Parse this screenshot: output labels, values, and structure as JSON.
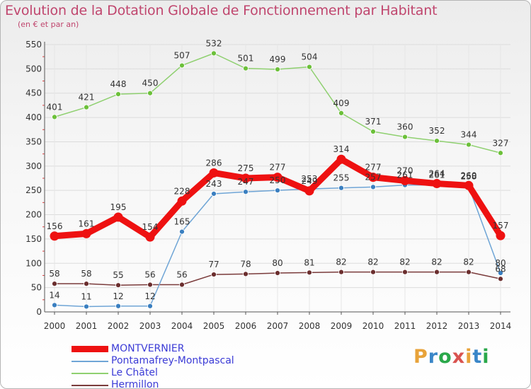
{
  "header": {
    "title": "Evolution de la Dotation Globale de Fonctionnement par Habitant",
    "subtitle": "(en € et par an)"
  },
  "logo": {
    "text": "Proxiti",
    "colors": [
      "#e8a33a",
      "#3a86c8",
      "#2aa84a",
      "#d9534f",
      "#e8a33a",
      "#3a86c8",
      "#2aa84a"
    ]
  },
  "colors": {
    "text": "#c0466e",
    "axis": "#555555",
    "grid": "#dddddd",
    "legend_text": "#3b3bd6"
  },
  "chart_data": {
    "type": "line",
    "title": "Evolution de la Dotation Globale de Fonctionnement par Habitant",
    "subtitle": "(en € et par an)",
    "xlabel": "",
    "ylabel": "",
    "x": [
      "2000",
      "2001",
      "2002",
      "2003",
      "2004",
      "2005",
      "2006",
      "2007",
      "2008",
      "2009",
      "2010",
      "2011",
      "2012",
      "2013",
      "2014"
    ],
    "ylim": [
      0,
      550
    ],
    "yticks": [
      0,
      50,
      100,
      150,
      200,
      250,
      300,
      350,
      400,
      450,
      500,
      550
    ],
    "grid": true,
    "legend_position": "bottom-left",
    "series": [
      {
        "name": "MONTVERNIER",
        "color": "#ee1111",
        "dot": "#ee1111",
        "width": 9,
        "values": [
          156,
          161,
          195,
          154,
          228,
          286,
          275,
          277,
          249,
          314,
          277,
          270,
          264,
          260,
          157
        ],
        "labels": [
          "156",
          "161",
          "195",
          "154",
          "228",
          "286",
          "275",
          "277",
          "249",
          "314",
          "277",
          "270",
          "264",
          "260",
          "157"
        ]
      },
      {
        "name": "Pontamafrey-Montpascal",
        "color": "#6fa5d6",
        "dot": "#3a7fc0",
        "width": 1.5,
        "values": [
          14,
          11,
          12,
          12,
          165,
          243,
          247,
          250,
          253,
          255,
          257,
          261,
          261,
          258,
          80
        ],
        "labels": [
          "14",
          "11",
          "12",
          "12",
          "165",
          "243",
          "247",
          "250",
          "253",
          "255",
          "257",
          "261",
          "261",
          "258",
          "80"
        ]
      },
      {
        "name": "Le Châtel",
        "color": "#8fd070",
        "dot": "#6cc03a",
        "width": 1.5,
        "values": [
          401,
          421,
          448,
          450,
          507,
          532,
          501,
          499,
          504,
          409,
          371,
          360,
          352,
          344,
          327
        ],
        "labels": [
          "401",
          "421",
          "448",
          "450",
          "507",
          "532",
          "501",
          "499",
          "504",
          "409",
          "371",
          "360",
          "352",
          "344",
          "327"
        ]
      },
      {
        "name": "Hermillon",
        "color": "#7a3b3b",
        "dot": "#6b2e2e",
        "width": 1.5,
        "values": [
          58,
          58,
          55,
          56,
          56,
          77,
          78,
          80,
          81,
          82,
          82,
          82,
          82,
          82,
          68
        ],
        "labels": [
          "58",
          "58",
          "55",
          "56",
          "56",
          "77",
          "78",
          "80",
          "81",
          "82",
          "82",
          "82",
          "82",
          "82",
          "68"
        ]
      }
    ]
  }
}
